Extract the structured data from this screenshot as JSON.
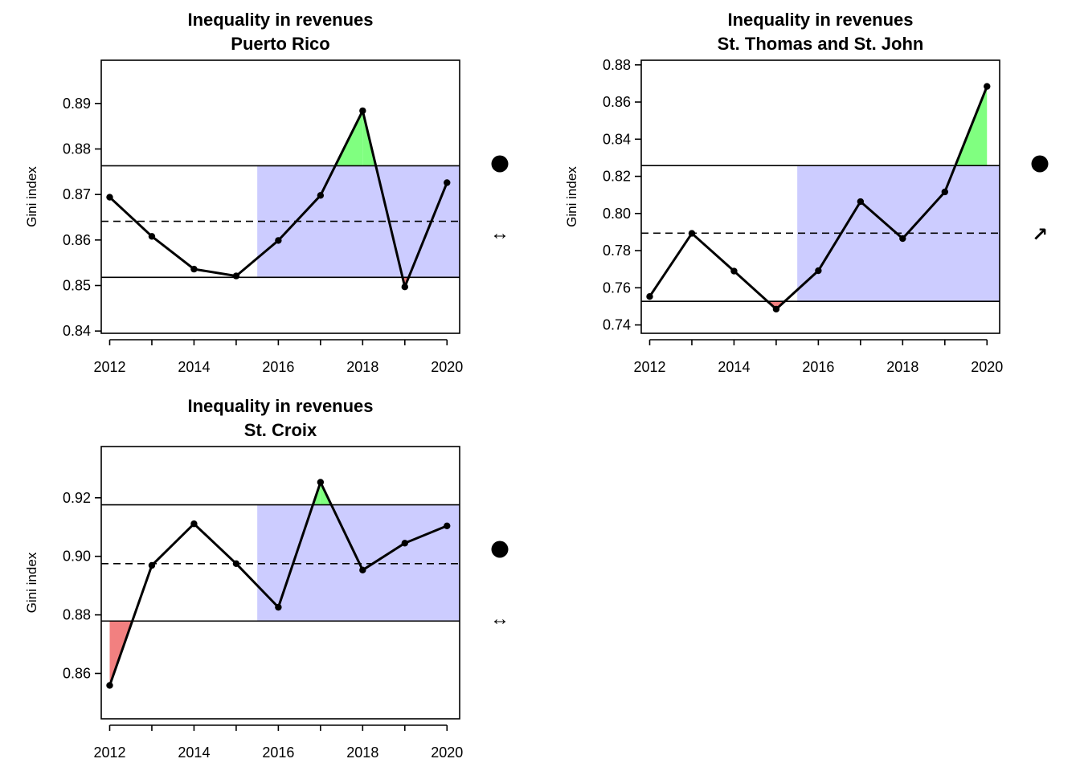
{
  "chart_data": [
    {
      "type": "line",
      "title": "Inequality in revenues",
      "subtitle": "Puerto Rico",
      "ylabel": "Gini index",
      "xlabel": "",
      "x": [
        2012,
        2013,
        2014,
        2015,
        2016,
        2017,
        2018,
        2019,
        2020
      ],
      "values": [
        0.8694,
        0.8608,
        0.8536,
        0.8521,
        0.8599,
        0.8698,
        0.8884,
        0.8497,
        0.8726
      ],
      "xlim": [
        2011.8,
        2020.3
      ],
      "ylim": [
        0.8395,
        0.8995
      ],
      "x_ticks": [
        2012,
        2014,
        2016,
        2018,
        2020
      ],
      "y_ticks": [
        0.84,
        0.85,
        0.86,
        0.87,
        0.88,
        0.89
      ],
      "y_tick_labels": [
        "0.84",
        "0.85",
        "0.86",
        "0.87",
        "0.88",
        "0.89"
      ],
      "mean": 0.8641,
      "upper": 0.8763,
      "lower": 0.8518,
      "shade_start_x": 2015.5,
      "status_symbol": "filled-circle",
      "trend_symbol": "↔"
    },
    {
      "type": "line",
      "title": "Inequality in revenues",
      "subtitle": "St. Thomas and St. John",
      "ylabel": "Gini index",
      "xlabel": "",
      "x": [
        2012,
        2013,
        2014,
        2015,
        2016,
        2017,
        2018,
        2019,
        2020
      ],
      "values": [
        0.7553,
        0.7893,
        0.769,
        0.7485,
        0.7692,
        0.8064,
        0.7865,
        0.8116,
        0.8684
      ],
      "xlim": [
        2011.8,
        2020.3
      ],
      "ylim": [
        0.7355,
        0.8825
      ],
      "x_ticks": [
        2012,
        2014,
        2016,
        2018,
        2020
      ],
      "y_ticks": [
        0.74,
        0.76,
        0.78,
        0.8,
        0.82,
        0.84,
        0.86,
        0.88
      ],
      "y_tick_labels": [
        "0.74",
        "0.76",
        "0.78",
        "0.80",
        "0.82",
        "0.84",
        "0.86",
        "0.88"
      ],
      "mean": 0.7894,
      "upper": 0.8258,
      "lower": 0.7527,
      "shade_start_x": 2015.5,
      "status_symbol": "filled-circle",
      "trend_symbol": "↗"
    },
    {
      "type": "line",
      "title": "Inequality in revenues",
      "subtitle": "St. Croix",
      "ylabel": "Gini index",
      "xlabel": "",
      "x": [
        2012,
        2013,
        2014,
        2015,
        2016,
        2017,
        2018,
        2019,
        2020
      ],
      "values": [
        0.8559,
        0.8969,
        0.9111,
        0.8975,
        0.8826,
        0.9253,
        0.8953,
        0.9045,
        0.9104
      ],
      "xlim": [
        2011.8,
        2020.3
      ],
      "ylim": [
        0.8445,
        0.9375
      ],
      "x_ticks": [
        2012,
        2014,
        2016,
        2018,
        2020
      ],
      "y_ticks": [
        0.86,
        0.88,
        0.9,
        0.92
      ],
      "y_tick_labels": [
        "0.86",
        "0.88",
        "0.90",
        "0.92"
      ],
      "mean": 0.8975,
      "upper": 0.9176,
      "lower": 0.8779,
      "shade_start_x": 2015.5,
      "status_symbol": "filled-circle",
      "trend_symbol": "↔"
    }
  ],
  "colors": {
    "shade": "#ccccff",
    "above": "#80ff80",
    "below": "#f28080",
    "line": "#000000"
  }
}
